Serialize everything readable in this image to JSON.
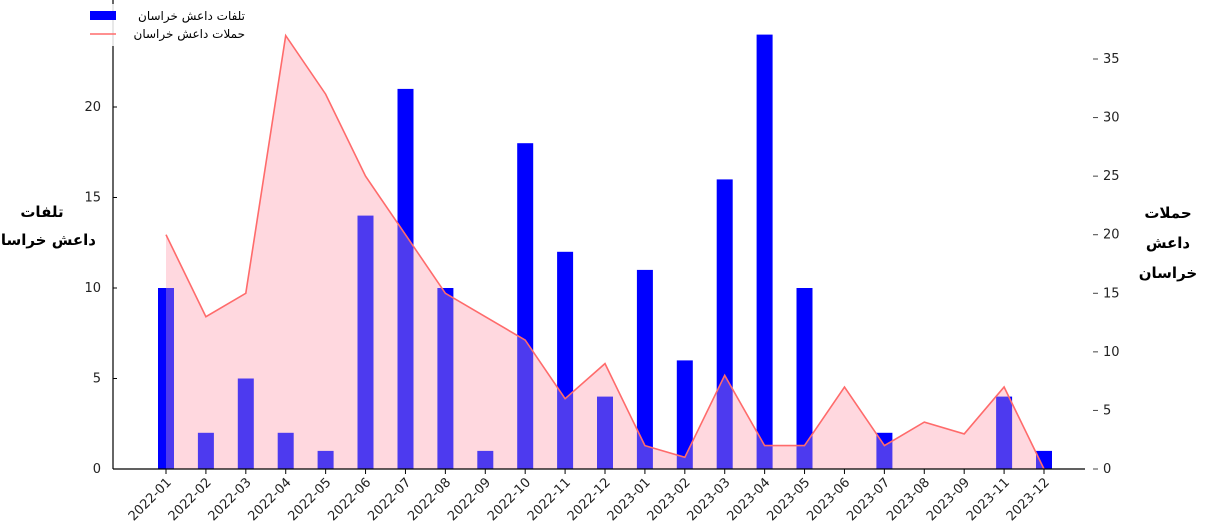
{
  "chart_data": {
    "type": "bar+area",
    "categories": [
      "2022-01",
      "2022-02",
      "2022-03",
      "2022-04",
      "2022-05",
      "2022-06",
      "2022-07",
      "2022-08",
      "2022-09",
      "2022-10",
      "2022-11",
      "2022-12",
      "2023-01",
      "2023-02",
      "2023-03",
      "2023-04",
      "2023-05",
      "2023-06",
      "2023-07",
      "2023-08",
      "2023-09",
      "2023-11",
      "2023-12"
    ],
    "series": [
      {
        "name": "تلفات داعش خراسان",
        "type": "bar",
        "axis": "left",
        "color": "#0000ff",
        "values": [
          10,
          2,
          5,
          2,
          1,
          14,
          21,
          10,
          1,
          18,
          12,
          4,
          11,
          6,
          16,
          24,
          10,
          0,
          2,
          0,
          0,
          4,
          1
        ]
      },
      {
        "name": "حملات داعش خراسان",
        "type": "area",
        "axis": "right",
        "color": "#ff6b6b",
        "fill": "#ffc0cb",
        "values": [
          20,
          13,
          15,
          37,
          32,
          25,
          20,
          15,
          13,
          11,
          6,
          9,
          2,
          1,
          8,
          2,
          2,
          7,
          2,
          4,
          3,
          7,
          0
        ]
      }
    ],
    "ylabel_left": [
      "تلفات",
      "داعش خراسان"
    ],
    "ylabel_right": [
      "حملات",
      "داعش",
      "خراسان"
    ],
    "ylim_left": [
      0,
      24
    ],
    "ylim_right": [
      0,
      37
    ],
    "yticks_left": [
      0,
      5,
      10,
      15,
      20
    ],
    "yticks_right": [
      0,
      5,
      10,
      15,
      20,
      25,
      30,
      35
    ],
    "legend_position": "top-left",
    "grid": false
  }
}
